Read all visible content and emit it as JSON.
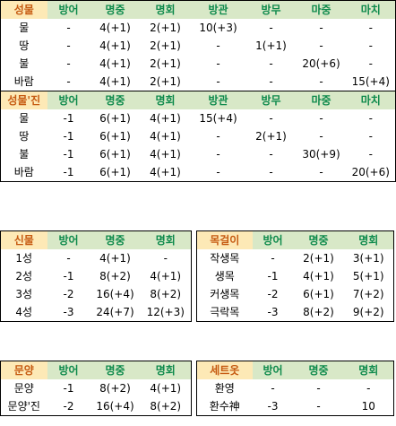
{
  "table1": {
    "headers": [
      "성물",
      "방어",
      "명중",
      "명회",
      "방관",
      "방무",
      "마중",
      "마치"
    ],
    "rows": [
      [
        "물",
        "-",
        "4(+1)",
        "2(+1)",
        "10(+3)",
        "-",
        "-",
        "-"
      ],
      [
        "땅",
        "-",
        "4(+1)",
        "2(+1)",
        "-",
        "1(+1)",
        "-",
        "-"
      ],
      [
        "불",
        "-",
        "4(+1)",
        "2(+1)",
        "-",
        "-",
        "20(+6)",
        "-"
      ],
      [
        "바람",
        "-",
        "4(+1)",
        "2(+1)",
        "-",
        "-",
        "-",
        "15(+4)"
      ]
    ],
    "headers2": [
      "성물'진",
      "방어",
      "명중",
      "명회",
      "방관",
      "방무",
      "마중",
      "마치"
    ],
    "rows2": [
      [
        "물",
        "-1",
        "6(+1)",
        "4(+1)",
        "15(+4)",
        "-",
        "-",
        "-"
      ],
      [
        "땅",
        "-1",
        "6(+1)",
        "4(+1)",
        "-",
        "2(+1)",
        "-",
        "-"
      ],
      [
        "불",
        "-1",
        "6(+1)",
        "4(+1)",
        "-",
        "-",
        "30(+9)",
        "-"
      ],
      [
        "바람",
        "-1",
        "6(+1)",
        "4(+1)",
        "-",
        "-",
        "-",
        "20(+6)"
      ]
    ]
  },
  "table2": {
    "headers": [
      "신물",
      "방어",
      "명중",
      "명회"
    ],
    "rows": [
      [
        "1성",
        "-",
        "4(+1)",
        "-"
      ],
      [
        "2성",
        "-1",
        "8(+2)",
        "4(+1)"
      ],
      [
        "3성",
        "-2",
        "16(+4)",
        "8(+2)"
      ],
      [
        "4성",
        "-3",
        "24(+7)",
        "12(+3)"
      ]
    ]
  },
  "table3": {
    "headers": [
      "목걸이",
      "방어",
      "명중",
      "명회"
    ],
    "rows": [
      [
        "작생목",
        "-",
        "2(+1)",
        "3(+1)"
      ],
      [
        "생목",
        "-1",
        "4(+1)",
        "5(+1)"
      ],
      [
        "커생목",
        "-2",
        "6(+1)",
        "7(+2)"
      ],
      [
        "극락목",
        "-3",
        "8(+2)",
        "9(+2)"
      ]
    ]
  },
  "table4": {
    "headers": [
      "문양",
      "방어",
      "명중",
      "명회"
    ],
    "rows": [
      [
        "문양",
        "-1",
        "8(+2)",
        "4(+1)"
      ],
      [
        "문양'진",
        "-2",
        "16(+4)",
        "8(+2)"
      ]
    ]
  },
  "table5": {
    "headers": [
      "세트옷",
      "방어",
      "명중",
      "명회"
    ],
    "rows": [
      [
        "환영",
        "-",
        "-",
        "-"
      ],
      [
        "환수神",
        "-3",
        "-",
        "10"
      ]
    ]
  }
}
